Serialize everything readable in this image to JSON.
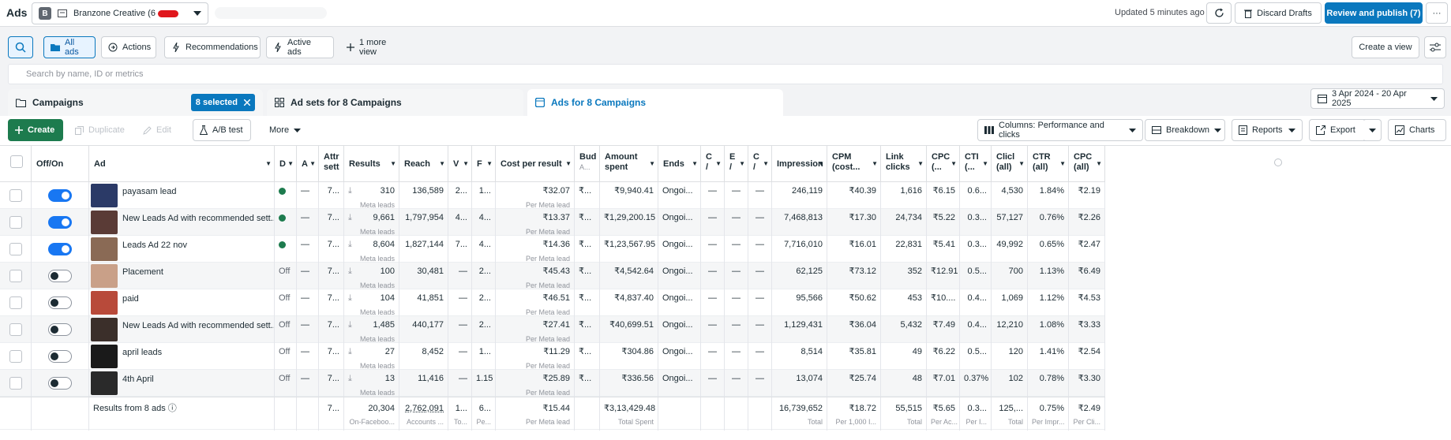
{
  "topbar": {
    "app_title": "Ads",
    "account_badge": "B",
    "account_name": "Branzone Creative (6",
    "updated": "Updated 5 minutes ago",
    "discard_label": "Discard Drafts",
    "publish_label": "Review and publish (7)",
    "more_label": "···"
  },
  "filters": {
    "all_ads": "All ads",
    "actions": "Actions",
    "recommendations": "Recommendations",
    "active_ads": "Active ads",
    "more_view": "1 more view",
    "create_view": "Create a view"
  },
  "search": {
    "placeholder": "Search by name, ID or metrics"
  },
  "tabs": {
    "campaigns": "Campaigns",
    "selected": "8 selected",
    "adsets": "Ad sets for 8 Campaigns",
    "ads": "Ads for 8 Campaigns",
    "date_range": "3 Apr 2024 - 20 Apr 2025"
  },
  "toolbar": {
    "create": "Create",
    "duplicate": "Duplicate",
    "edit": "Edit",
    "ab_test": "A/B test",
    "more": "More",
    "columns": "Columns: Performance and clicks",
    "breakdown": "Breakdown",
    "reports": "Reports",
    "export": "Export",
    "charts": "Charts"
  },
  "headers": {
    "offon": "Off/On",
    "ad": "Ad",
    "d": "D",
    "a": "A",
    "attr": [
      "Attr",
      "sett"
    ],
    "results": "Results",
    "reach": "Reach",
    "v": "V",
    "f": "F",
    "cpr": "Cost per result",
    "bud": [
      "Bud",
      "A..."
    ],
    "amount": [
      "Amount",
      "spent"
    ],
    "ends": "Ends",
    "c1": [
      "C",
      "/"
    ],
    "e": [
      "E",
      "/"
    ],
    "c2": [
      "C",
      "/"
    ],
    "impressions": "Impression",
    "cpm": [
      "CPM",
      "(cost..."
    ],
    "link": [
      "Link",
      "clicks"
    ],
    "cpc": [
      "CPC",
      "(..."
    ],
    "ctr1": [
      "CTI",
      "(..."
    ],
    "clicks": [
      "Clicl",
      "(all)"
    ],
    "ctr": [
      "CTR",
      "(all)"
    ],
    "cpc_all": [
      "CPC",
      "(all)"
    ]
  },
  "rows": [
    {
      "toggle": "on",
      "name": "payasam lead",
      "status": "I",
      "dash": "—",
      "attr": "7...",
      "results": "310",
      "results_sub": "Meta leads",
      "reach": "136,589",
      "v": "2...",
      "f": "1...",
      "cpr": "₹32.07",
      "cpr_sub": "Per Meta lead",
      "bud": "₹...",
      "amount": "₹9,940.41",
      "ends": "Ongoi...",
      "c1": "—",
      "e": "—",
      "c2": "—",
      "impressions": "246,119",
      "cpm": "₹40.39",
      "link": "1,616",
      "cpc": "₹6.15",
      "ctr1": "0.6...",
      "clicks": "4,530",
      "ctr": "1.84%",
      "cpc_all": "₹2.19",
      "thumb": "#2b3a67"
    },
    {
      "toggle": "on",
      "name": "New Leads Ad with recommended sett...",
      "status": "–",
      "dash": "—",
      "attr": "7...",
      "results": "9,661",
      "results_sub": "Meta leads",
      "reach": "1,797,954",
      "v": "4...",
      "f": "4...",
      "cpr": "₹13.37",
      "cpr_sub": "Per Meta lead",
      "bud": "₹...",
      "amount": "₹1,29,200.15",
      "ends": "Ongoi...",
      "c1": "—",
      "e": "—",
      "c2": "—",
      "impressions": "7,468,813",
      "cpm": "₹17.30",
      "link": "24,734",
      "cpc": "₹5.22",
      "ctr1": "0.3...",
      "clicks": "57,127",
      "ctr": "0.76%",
      "cpc_all": "₹2.26",
      "thumb": "#5a3b36"
    },
    {
      "toggle": "on",
      "name": "Leads Ad 22 nov",
      "status": "–",
      "dash": "—",
      "attr": "7...",
      "results": "8,604",
      "results_sub": "Meta leads",
      "reach": "1,827,144",
      "v": "7...",
      "f": "4...",
      "cpr": "₹14.36",
      "cpr_sub": "Per Meta lead",
      "bud": "₹...",
      "amount": "₹1,23,567.95",
      "ends": "Ongoi...",
      "c1": "—",
      "e": "—",
      "c2": "—",
      "impressions": "7,716,010",
      "cpm": "₹16.01",
      "link": "22,831",
      "cpc": "₹5.41",
      "ctr1": "0.3...",
      "clicks": "49,992",
      "ctr": "0.65%",
      "cpc_all": "₹2.47",
      "thumb": "#8a6a55"
    },
    {
      "toggle": "off",
      "name": "Placement",
      "status": "Off",
      "dash": "—",
      "attr": "7...",
      "results": "100",
      "results_sub": "Meta leads",
      "reach": "30,481",
      "v": "—",
      "f": "2...",
      "cpr": "₹45.43",
      "cpr_sub": "Per Meta lead",
      "bud": "₹...",
      "amount": "₹4,542.64",
      "ends": "Ongoi...",
      "c1": "—",
      "e": "—",
      "c2": "—",
      "impressions": "62,125",
      "cpm": "₹73.12",
      "link": "352",
      "cpc": "₹12.91",
      "ctr1": "0.5...",
      "clicks": "700",
      "ctr": "1.13%",
      "cpc_all": "₹6.49",
      "thumb": "#c9a088"
    },
    {
      "toggle": "off",
      "name": "paid",
      "status": "Off",
      "dash": "—",
      "attr": "7...",
      "results": "104",
      "results_sub": "Meta leads",
      "reach": "41,851",
      "v": "—",
      "f": "2...",
      "cpr": "₹46.51",
      "cpr_sub": "Per Meta lead",
      "bud": "₹...",
      "amount": "₹4,837.40",
      "ends": "Ongoi...",
      "c1": "—",
      "e": "—",
      "c2": "—",
      "impressions": "95,566",
      "cpm": "₹50.62",
      "link": "453",
      "cpc": "₹10....",
      "ctr1": "0.4...",
      "clicks": "1,069",
      "ctr": "1.12%",
      "cpc_all": "₹4.53",
      "thumb": "#b84a3a"
    },
    {
      "toggle": "off",
      "name": "New Leads Ad with recommended sett...",
      "status": "Off",
      "dash": "—",
      "attr": "7...",
      "results": "1,485",
      "results_sub": "Meta leads",
      "reach": "440,177",
      "v": "—",
      "f": "2...",
      "cpr": "₹27.41",
      "cpr_sub": "Per Meta lead",
      "bud": "₹...",
      "amount": "₹40,699.51",
      "ends": "Ongoi...",
      "c1": "—",
      "e": "—",
      "c2": "—",
      "impressions": "1,129,431",
      "cpm": "₹36.04",
      "link": "5,432",
      "cpc": "₹7.49",
      "ctr1": "0.4...",
      "clicks": "12,210",
      "ctr": "1.08%",
      "cpc_all": "₹3.33",
      "thumb": "#3b2f2a"
    },
    {
      "toggle": "off",
      "name": "april leads",
      "status": "Off",
      "dash": "—",
      "attr": "7...",
      "results": "27",
      "results_sub": "Meta leads",
      "reach": "8,452",
      "v": "—",
      "f": "1...",
      "cpr": "₹11.29",
      "cpr_sub": "Per Meta lead",
      "bud": "₹...",
      "amount": "₹304.86",
      "ends": "Ongoi...",
      "c1": "—",
      "e": "—",
      "c2": "—",
      "impressions": "8,514",
      "cpm": "₹35.81",
      "link": "49",
      "cpc": "₹6.22",
      "ctr1": "0.5...",
      "clicks": "120",
      "ctr": "1.41%",
      "cpc_all": "₹2.54",
      "thumb": "#1a1a1a"
    },
    {
      "toggle": "off",
      "name": "4th April",
      "status": "Off",
      "dash": "—",
      "attr": "7...",
      "results": "13",
      "results_sub": "Meta leads",
      "reach": "11,416",
      "v": "—",
      "f": "1.15",
      "cpr": "₹25.89",
      "cpr_sub": "Per Meta lead",
      "bud": "₹...",
      "amount": "₹336.56",
      "ends": "Ongoi...",
      "c1": "—",
      "e": "—",
      "c2": "—",
      "impressions": "13,074",
      "cpm": "₹25.74",
      "link": "48",
      "cpc": "₹7.01",
      "ctr1": "0.37%",
      "clicks": "102",
      "ctr": "0.78%",
      "cpc_all": "₹3.30",
      "thumb": "#2a2a2a"
    }
  ],
  "footer": {
    "label": "Results from 8 ads",
    "attr": "7...",
    "results": "20,304",
    "results_sub": "On-Faceboo...",
    "reach": "2,762,091",
    "reach_sub": "Accounts ...",
    "v": "1...",
    "v_sub": "To...",
    "f": "6...",
    "f_sub": "Pe...",
    "cpr": "₹15.44",
    "cpr_sub": "Per Meta lead",
    "amount": "₹3,13,429.48",
    "amount_sub": "Total Spent",
    "impressions": "16,739,652",
    "impressions_sub": "Total",
    "cpm": "₹18.72",
    "cpm_sub": "Per 1,000 I...",
    "link": "55,515",
    "link_sub": "Total",
    "cpc": "₹5.65",
    "cpc_sub": "Per Ac...",
    "ctr1": "0.3...",
    "ctr1_sub": "Per I...",
    "clicks": "125,...",
    "clicks_sub": "Total",
    "ctr": "0.75%",
    "ctr_sub": "Per Impr...",
    "cpc_all": "₹2.49",
    "cpc_all_sub": "Per Cli..."
  },
  "colors": {
    "accent": "#0a78be",
    "create_green": "#1d7b4e",
    "toggle_on": "#1877f2",
    "redaction": "#e0171c"
  }
}
